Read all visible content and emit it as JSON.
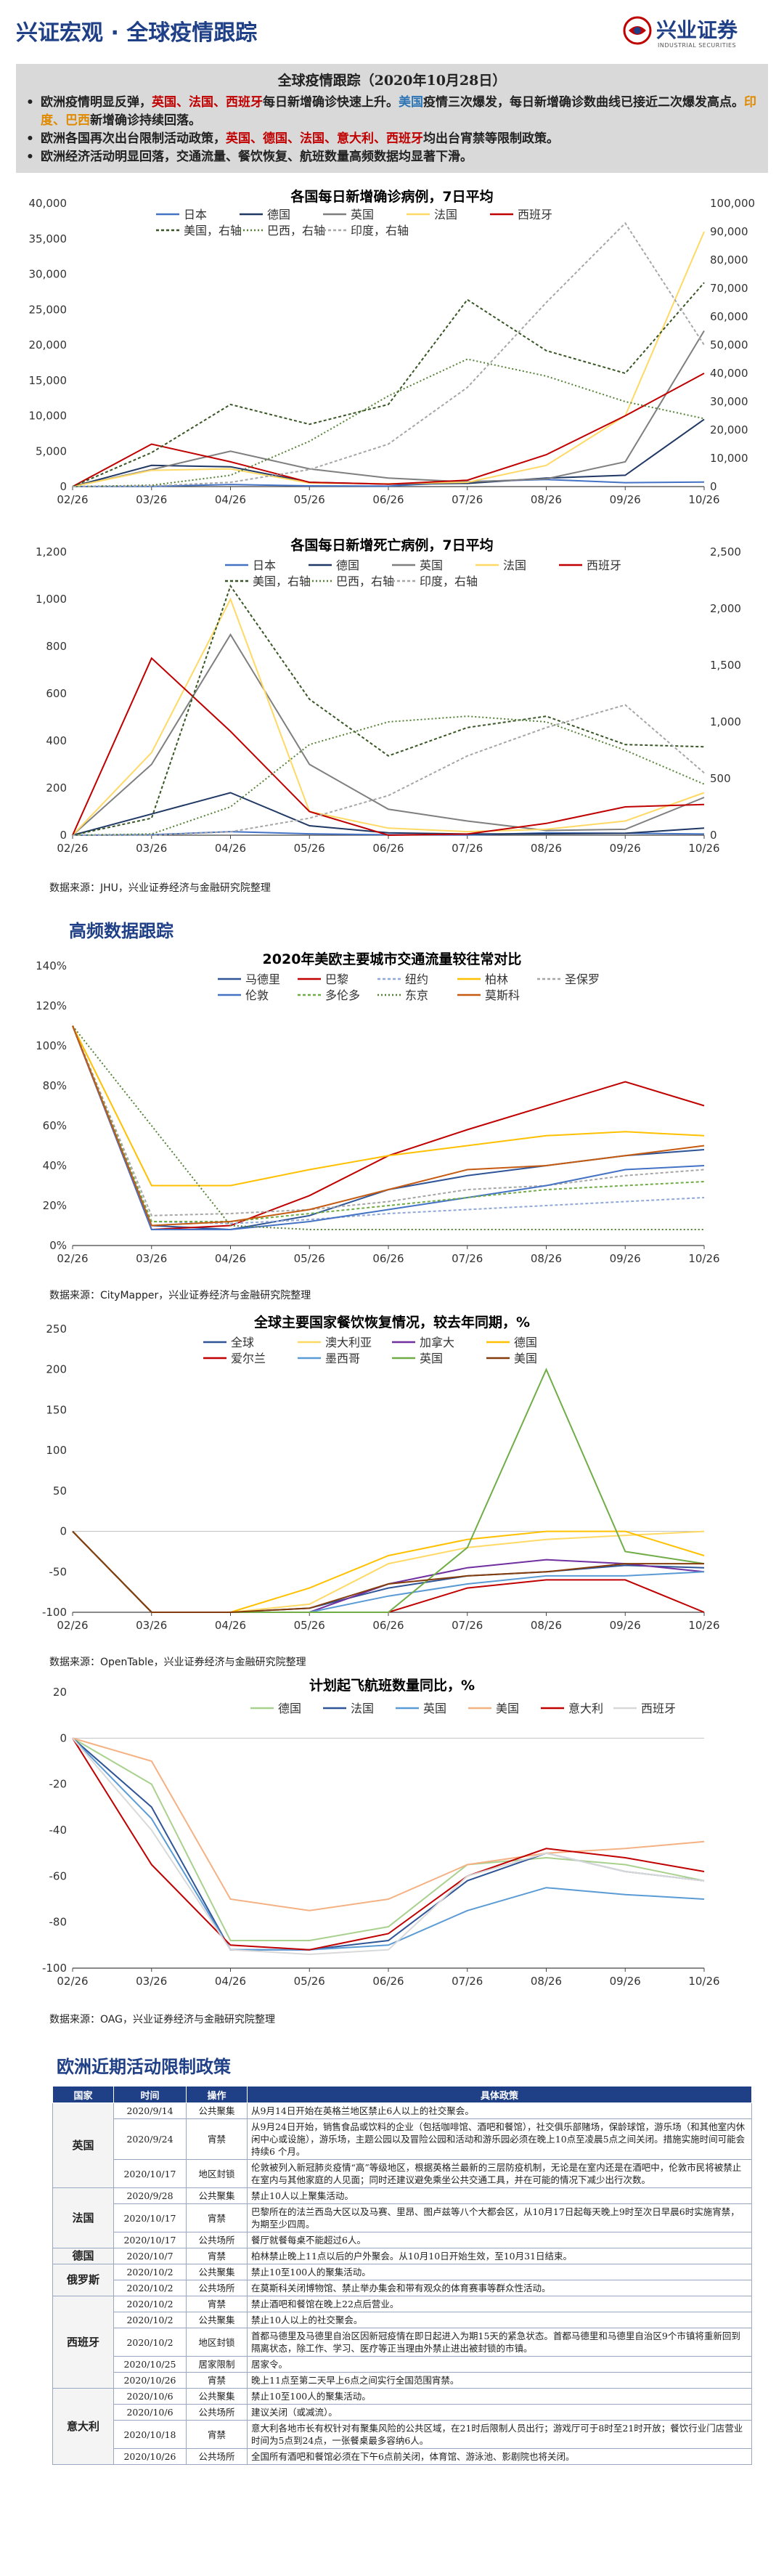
{
  "header": {
    "title": "兴证宏观 · 全球疫情跟踪",
    "brand": "兴业证券",
    "brand_en": "INDUSTRIAL SECURITIES"
  },
  "summary": {
    "title": "全球疫情跟踪（2020年10月28日）",
    "bullets": [
      [
        [
          "欧洲疫情明显反弹，",
          ""
        ],
        [
          "英国、法国、西班牙",
          "red"
        ],
        [
          "每日新增确诊快速上升。",
          ""
        ],
        [
          "美国",
          "blue"
        ],
        [
          "疫情三次爆发，每日新增确诊数曲线已接近二次爆发高点。",
          ""
        ],
        [
          "印度、巴西",
          "orange"
        ],
        [
          "新增确诊持续回落。",
          ""
        ]
      ],
      [
        [
          "欧洲各国再次出台限制活动政策，",
          ""
        ],
        [
          "英国、德国、法国、意大利、西班牙",
          "red"
        ],
        [
          "均出台宵禁等限制政策。",
          ""
        ]
      ],
      [
        [
          "欧洲经济活动明显回落，交通流量、餐饮恢复、航班数量高频数据均显著下滑。",
          ""
        ]
      ]
    ]
  },
  "sections": {
    "hf": "高频数据跟踪",
    "policy": "欧洲近期活动限制政策"
  },
  "sources": {
    "s1": "数据来源：JHU，兴业证券经济与金融研究院整理",
    "s2": "数据来源：CityMapper，兴业证券经济与金融研究院整理",
    "s3": "数据来源：OpenTable，兴业证券经济与金融研究院整理",
    "s4": "数据来源：OAG，兴业证券经济与金融研究院整理"
  },
  "chart_data": [
    {
      "id": "cases",
      "type": "line",
      "title": "各国每日新增确诊病例，7日平均",
      "x": [
        "02/26",
        "03/26",
        "04/26",
        "05/26",
        "06/26",
        "07/26",
        "08/26",
        "09/26",
        "10/26"
      ],
      "ylim": [
        0,
        40000
      ],
      "y2lim": [
        0,
        100000
      ],
      "yticks": [
        "0",
        "5,000",
        "10,000",
        "15,000",
        "20,000",
        "25,000",
        "30,000",
        "35,000",
        "40,000"
      ],
      "y2ticks": [
        "0",
        "10,000",
        "20,000",
        "30,000",
        "40,000",
        "50,000",
        "60,000",
        "70,000",
        "80,000",
        "90,000",
        "100,000"
      ],
      "series": [
        {
          "name": "日本",
          "color": "#4472c4",
          "dash": "",
          "axis": "left",
          "values": [
            0,
            30,
            300,
            100,
            60,
            700,
            1000,
            550,
            650
          ]
        },
        {
          "name": "德国",
          "color": "#203864",
          "dash": "",
          "axis": "left",
          "values": [
            0,
            3000,
            2800,
            600,
            350,
            450,
            1200,
            1600,
            9500
          ]
        },
        {
          "name": "英国",
          "color": "#7f7f7f",
          "dash": "",
          "axis": "left",
          "values": [
            0,
            2400,
            5000,
            2500,
            1200,
            650,
            1100,
            3500,
            22000
          ]
        },
        {
          "name": "法国",
          "color": "#ffd966",
          "dash": "",
          "axis": "left",
          "values": [
            0,
            2300,
            2500,
            500,
            400,
            600,
            3000,
            10000,
            36000
          ]
        },
        {
          "name": "西班牙",
          "color": "#c00000",
          "dash": "",
          "axis": "left",
          "values": [
            0,
            6000,
            3500,
            600,
            350,
            900,
            4500,
            10000,
            16000
          ]
        },
        {
          "name": "美国，右轴",
          "color": "#375623",
          "dash": "4,3",
          "axis": "right",
          "values": [
            0,
            12000,
            29000,
            22000,
            29000,
            66000,
            48000,
            40000,
            72000
          ]
        },
        {
          "name": "巴西，右轴",
          "color": "#548235",
          "dash": "2,3",
          "axis": "right",
          "values": [
            0,
            500,
            4000,
            16000,
            32000,
            45000,
            39000,
            30000,
            24000
          ]
        },
        {
          "name": "印度，右轴",
          "color": "#a6a6a6",
          "dash": "4,3",
          "axis": "right",
          "values": [
            0,
            200,
            1500,
            6000,
            15000,
            35000,
            65000,
            93000,
            50000
          ]
        }
      ]
    },
    {
      "id": "deaths",
      "type": "line",
      "title": "各国每日新增死亡病例，7日平均",
      "x": [
        "02/26",
        "03/26",
        "04/26",
        "05/26",
        "06/26",
        "07/26",
        "08/26",
        "09/26",
        "10/26"
      ],
      "ylim": [
        0,
        1200
      ],
      "y2lim": [
        0,
        2500
      ],
      "yticks": [
        "0",
        "200",
        "400",
        "600",
        "800",
        "1,000",
        "1,200"
      ],
      "y2ticks": [
        "0",
        "500",
        "1,000",
        "1,500",
        "2,000",
        "2,500"
      ],
      "series": [
        {
          "name": "日本",
          "color": "#4472c4",
          "dash": "",
          "axis": "left",
          "values": [
            0,
            2,
            15,
            6,
            2,
            1,
            10,
            8,
            5
          ]
        },
        {
          "name": "德国",
          "color": "#203864",
          "dash": "",
          "axis": "left",
          "values": [
            0,
            90,
            180,
            40,
            10,
            5,
            6,
            8,
            30
          ]
        },
        {
          "name": "英国",
          "color": "#7f7f7f",
          "dash": "",
          "axis": "left",
          "values": [
            0,
            300,
            850,
            300,
            110,
            60,
            20,
            25,
            160
          ]
        },
        {
          "name": "法国",
          "color": "#ffd966",
          "dash": "",
          "axis": "left",
          "values": [
            0,
            350,
            1000,
            100,
            30,
            15,
            25,
            60,
            180
          ]
        },
        {
          "name": "西班牙",
          "color": "#c00000",
          "dash": "",
          "axis": "left",
          "values": [
            0,
            750,
            440,
            100,
            0,
            5,
            50,
            120,
            130
          ]
        },
        {
          "name": "美国，右轴",
          "color": "#375623",
          "dash": "4,3",
          "axis": "right",
          "values": [
            0,
            150,
            2200,
            1200,
            700,
            950,
            1050,
            800,
            780
          ]
        },
        {
          "name": "巴西，右轴",
          "color": "#548235",
          "dash": "2,3",
          "axis": "right",
          "values": [
            0,
            10,
            250,
            800,
            1000,
            1050,
            1000,
            750,
            450
          ]
        },
        {
          "name": "印度，右轴",
          "color": "#a6a6a6",
          "dash": "4,3",
          "axis": "right",
          "values": [
            0,
            0,
            30,
            150,
            350,
            700,
            950,
            1150,
            550
          ]
        }
      ]
    },
    {
      "id": "traffic",
      "type": "line",
      "title": "2020年美欧主要城市交通流量较往常对比",
      "x": [
        "02/26",
        "03/26",
        "04/26",
        "05/26",
        "06/26",
        "07/26",
        "08/26",
        "09/26",
        "10/26"
      ],
      "ylim": [
        0,
        140
      ],
      "yticks": [
        "0%",
        "20%",
        "40%",
        "60%",
        "80%",
        "100%",
        "120%",
        "140%"
      ],
      "series": [
        {
          "name": "马德里",
          "color": "#2f5597",
          "dash": "",
          "values": [
            110,
            10,
            8,
            15,
            28,
            35,
            40,
            45,
            48
          ]
        },
        {
          "name": "巴黎",
          "color": "#c00000",
          "dash": "",
          "values": [
            110,
            8,
            10,
            25,
            45,
            58,
            70,
            82,
            70
          ]
        },
        {
          "name": "纽约",
          "color": "#8fa8d8",
          "dash": "4,3",
          "values": [
            110,
            12,
            11,
            13,
            16,
            18,
            20,
            22,
            24
          ]
        },
        {
          "name": "柏林",
          "color": "#ffc000",
          "dash": "",
          "values": [
            110,
            30,
            30,
            38,
            45,
            50,
            55,
            57,
            55
          ]
        },
        {
          "name": "圣保罗",
          "color": "#a6a6a6",
          "dash": "4,3",
          "values": [
            110,
            15,
            16,
            18,
            22,
            28,
            30,
            35,
            38
          ]
        },
        {
          "name": "伦敦",
          "color": "#4472c4",
          "dash": "",
          "values": [
            110,
            8,
            8,
            12,
            18,
            24,
            30,
            38,
            40
          ]
        },
        {
          "name": "多伦多",
          "color": "#70ad47",
          "dash": "4,3",
          "values": [
            110,
            12,
            12,
            16,
            20,
            24,
            28,
            30,
            32
          ]
        },
        {
          "name": "东京",
          "color": "#548235",
          "dash": "2,3",
          "values": [
            110,
            60,
            10,
            8,
            8,
            8,
            8,
            8,
            8
          ]
        },
        {
          "name": "莫斯科",
          "color": "#c55a11",
          "dash": "",
          "values": [
            110,
            10,
            12,
            18,
            28,
            38,
            40,
            45,
            50
          ]
        }
      ]
    },
    {
      "id": "dining",
      "type": "line",
      "title": "全球主要国家餐饮恢复情况，较去年同期，%",
      "x": [
        "02/26",
        "03/26",
        "04/26",
        "05/26",
        "06/26",
        "07/26",
        "08/26",
        "09/26",
        "10/26"
      ],
      "ylim": [
        -100,
        250
      ],
      "yticks": [
        "-100",
        "-50",
        "0",
        "50",
        "100",
        "150",
        "200",
        "250"
      ],
      "series": [
        {
          "name": "全球",
          "color": "#2f5597",
          "dash": "",
          "values": [
            0,
            -100,
            -100,
            -95,
            -70,
            -55,
            -50,
            -42,
            -45
          ]
        },
        {
          "name": "澳大利亚",
          "color": "#ffd966",
          "dash": "",
          "values": [
            0,
            -100,
            -100,
            -90,
            -40,
            -20,
            -10,
            -5,
            0
          ]
        },
        {
          "name": "加拿大",
          "color": "#7030a0",
          "dash": "",
          "values": [
            0,
            -100,
            -100,
            -100,
            -65,
            -45,
            -35,
            -40,
            -50
          ]
        },
        {
          "name": "德国",
          "color": "#ffc000",
          "dash": "",
          "values": [
            0,
            -100,
            -100,
            -70,
            -30,
            -10,
            0,
            0,
            -30
          ]
        },
        {
          "name": "爱尔兰",
          "color": "#c00000",
          "dash": "",
          "values": [
            0,
            -100,
            -100,
            -100,
            -100,
            -70,
            -60,
            -60,
            -100
          ]
        },
        {
          "name": "墨西哥",
          "color": "#5b9bd5",
          "dash": "",
          "values": [
            0,
            -100,
            -100,
            -100,
            -80,
            -65,
            -55,
            -55,
            -50
          ]
        },
        {
          "name": "英国",
          "color": "#70ad47",
          "dash": "",
          "values": [
            0,
            -100,
            -100,
            -100,
            -100,
            -20,
            200,
            -25,
            -40
          ]
        },
        {
          "name": "美国",
          "color": "#843c0c",
          "dash": "",
          "values": [
            0,
            -100,
            -100,
            -95,
            -65,
            -55,
            -50,
            -40,
            -40
          ]
        }
      ]
    },
    {
      "id": "flights",
      "type": "line",
      "title": "计划起飞航班数量同比，%",
      "x": [
        "02/26",
        "03/26",
        "04/26",
        "05/26",
        "06/26",
        "07/26",
        "08/26",
        "09/26",
        "10/26"
      ],
      "ylim": [
        -100,
        20
      ],
      "yticks": [
        "-100",
        "-80",
        "-60",
        "-40",
        "-20",
        "0",
        "20"
      ],
      "series": [
        {
          "name": "德国",
          "color": "#a9d18e",
          "dash": "",
          "values": [
            0,
            -20,
            -88,
            -88,
            -82,
            -55,
            -52,
            -55,
            -62
          ]
        },
        {
          "name": "法国",
          "color": "#2f5597",
          "dash": "",
          "values": [
            0,
            -30,
            -92,
            -92,
            -88,
            -62,
            -50,
            -58,
            -62
          ]
        },
        {
          "name": "英国",
          "color": "#5b9bd5",
          "dash": "",
          "values": [
            0,
            -35,
            -92,
            -92,
            -90,
            -75,
            -65,
            -68,
            -70
          ]
        },
        {
          "name": "美国",
          "color": "#f4b183",
          "dash": "",
          "values": [
            0,
            -10,
            -70,
            -75,
            -70,
            -55,
            -50,
            -48,
            -45
          ]
        },
        {
          "name": "意大利",
          "color": "#c00000",
          "dash": "",
          "values": [
            0,
            -55,
            -90,
            -92,
            -85,
            -60,
            -48,
            -52,
            -58
          ]
        },
        {
          "name": "西班牙",
          "color": "#d9d9d9",
          "dash": "",
          "values": [
            0,
            -40,
            -92,
            -94,
            -92,
            -60,
            -50,
            -58,
            -62
          ]
        }
      ]
    }
  ],
  "policy": {
    "headers": [
      "国家",
      "时间",
      "操作",
      "具体政策"
    ],
    "groups": [
      {
        "country": "英国",
        "rows": [
          [
            "2020/9/14",
            "公共聚集",
            "从9月14日开始在英格兰地区禁止6人以上的社交聚会。"
          ],
          [
            "2020/9/24",
            "宵禁",
            "从9月24日开始，销售食品或饮料的企业（包括咖啡馆、酒吧和餐馆），社交俱乐部赌场，保龄球馆，游乐场（和其他室内休闲中心或设施），游乐场，主题公园以及冒险公园和活动和游乐园必须在晚上10点至凌晨5点之间关闭。措施实施时间可能会持续6 个月。"
          ],
          [
            "2020/10/17",
            "地区封锁",
            "伦敦被列入新冠肺炎疫情“高”等级地区，根据英格兰最新的三层防疫机制，无论是在室内还是在酒吧中，伦敦市民将被禁止在室内与其他家庭的人见面；同时还建议避免乘坐公共交通工具，并在可能的情况下减少出行次数。"
          ]
        ]
      },
      {
        "country": "法国",
        "rows": [
          [
            "2020/9/28",
            "公共聚集",
            "禁止10人以上聚集活动。"
          ],
          [
            "2020/10/17",
            "宵禁",
            "巴黎所在的法兰西岛大区以及马赛、里昂、图卢兹等八个大都会区，从10月17日起每天晚上9时至次日早晨6时实施宵禁，为期至少四周。"
          ],
          [
            "2020/10/17",
            "公共场所",
            "餐厅就餐每桌不能超过6人。"
          ]
        ]
      },
      {
        "country": "德国",
        "rows": [
          [
            "2020/10/7",
            "宵禁",
            "柏林禁止晚上11点以后的户外聚会。从10月10日开始生效，至10月31日结束。"
          ]
        ]
      },
      {
        "country": "俄罗斯",
        "rows": [
          [
            "2020/10/2",
            "公共聚集",
            "禁止10至100人的聚集活动。"
          ],
          [
            "2020/10/2",
            "公共场所",
            "在莫斯科关闭博物馆、禁止举办集会和带有观众的体育赛事等群众性活动。"
          ]
        ]
      },
      {
        "country": "西班牙",
        "rows": [
          [
            "2020/10/2",
            "宵禁",
            "禁止酒吧和餐馆在晚上22点后营业。"
          ],
          [
            "2020/10/2",
            "公共聚集",
            "禁止10人以上的社交聚会。"
          ],
          [
            "2020/10/2",
            "地区封锁",
            "首都马德里及马德里自治区因新冠疫情在即日起进入为期15天的紧急状态。首都马德里和马德里自治区9个市镇将重新回到隔离状态，除工作、学习、医疗等正当理由外禁止进出被封锁的市镇。"
          ],
          [
            "2020/10/25",
            "居家限制",
            "居家令。"
          ],
          [
            "2020/10/26",
            "宵禁",
            "晚上11点至第二天早上6点之间实行全国范围宵禁。"
          ]
        ]
      },
      {
        "country": "意大利",
        "rows": [
          [
            "2020/10/6",
            "公共聚集",
            "禁止10至100人的聚集活动。"
          ],
          [
            "2020/10/6",
            "公共场所",
            "建议关闭（或减流）。"
          ],
          [
            "2020/10/18",
            "宵禁",
            "意大利各地市长有权针对有聚集风险的公共区域，在21时后限制人员出行；游戏厅可于8时至21时开放；餐饮行业门店营业时间为5点到24点，一张餐桌最多容纳6人。"
          ],
          [
            "2020/10/26",
            "公共场所",
            "全国所有酒吧和餐馆必须在下午6点前关闭，体育馆、游泳池、影剧院也将关闭。"
          ]
        ]
      }
    ]
  }
}
